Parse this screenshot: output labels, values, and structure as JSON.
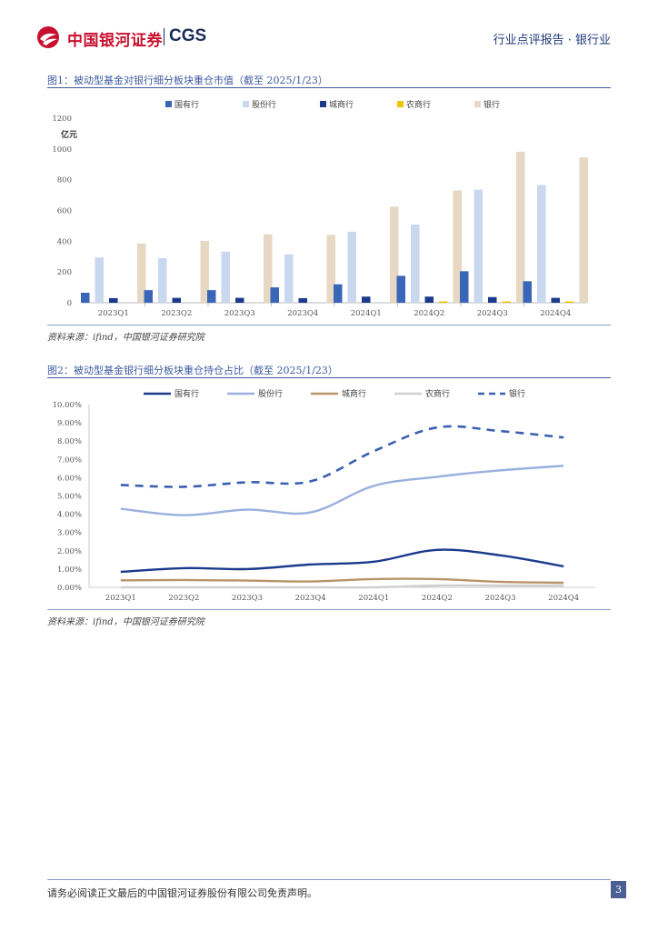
{
  "header": {
    "brand_cn": "中国银河证券",
    "brand_en": "CGS",
    "report_type": "行业点评报告 · 银行业"
  },
  "figure1": {
    "title": "图1：被动型基金对银行细分板块重仓市值（截至 2025/1/23）",
    "source": "资料来源：ifind，中国银河证券研究院"
  },
  "figure2": {
    "title": "图2：被动型基金银行细分板块重仓持仓占比（截至 2025/1/23）",
    "source": "资料来源：ifind，中国银河证券研究院"
  },
  "footer": {
    "disclaimer": "请务必阅读正文最后的中国银河证券股份有限公司免责声明。",
    "page_number": "3"
  },
  "colors": {
    "brand_red": "#c8102e",
    "brand_navy": "#1a2a5a",
    "title_blue": "#3d5aa0",
    "state_owned": "#3a66b8",
    "joint_stock": "#c9d7ef",
    "city_bank": "#1b3a8c",
    "rural_bank": "#f2c500",
    "bank": "#e6d8c3",
    "line_state_owned": "#1b3a8c",
    "line_joint_stock": "#9ab0de",
    "line_city_bank": "#b8946a",
    "line_rural_bank": "#d0d0d0",
    "line_bank": "#3a60b0"
  },
  "chart_data": [
    {
      "type": "bar",
      "title": "被动型基金对银行细分板块重仓市值（截至 2025/1/23）",
      "ylabel": "亿元",
      "xlabel": "",
      "ylim": [
        0,
        1200
      ],
      "yticks": [
        0,
        200,
        400,
        600,
        800,
        1000,
        1200
      ],
      "categories": [
        "2023Q1",
        "2023Q2",
        "2023Q3",
        "2023Q4",
        "2024Q1",
        "2024Q2",
        "2024Q3",
        "2024Q4"
      ],
      "legend_position": "top",
      "series": [
        {
          "name": "国有行",
          "color_key": "state_owned",
          "values": [
            65,
            82,
            82,
            100,
            120,
            175,
            205,
            140
          ]
        },
        {
          "name": "股份行",
          "color_key": "joint_stock",
          "values": [
            295,
            290,
            332,
            315,
            462,
            508,
            735,
            765
          ]
        },
        {
          "name": "城商行",
          "color_key": "city_bank",
          "values": [
            30,
            32,
            32,
            30,
            40,
            40,
            37,
            32
          ]
        },
        {
          "name": "农商行",
          "color_key": "rural_bank",
          "values": [
            0,
            0,
            0,
            0,
            0,
            9,
            9,
            9
          ]
        },
        {
          "name": "银行",
          "color_key": "bank",
          "values": [
            385,
            402,
            445,
            442,
            625,
            730,
            982,
            945
          ]
        }
      ]
    },
    {
      "type": "line",
      "title": "被动型基金银行细分板块重仓持仓占比（截至 2025/1/23）",
      "xlabel": "",
      "ylabel": "",
      "ylim": [
        0,
        10
      ],
      "yticks": [
        0,
        1,
        2,
        3,
        4,
        5,
        6,
        7,
        8,
        9,
        10
      ],
      "ytick_labels": [
        "0.00%",
        "1.00%",
        "2.00%",
        "3.00%",
        "4.00%",
        "5.00%",
        "6.00%",
        "7.00%",
        "8.00%",
        "9.00%",
        "10.00%"
      ],
      "categories": [
        "2023Q1",
        "2023Q2",
        "2023Q3",
        "2023Q4",
        "2024Q1",
        "2024Q2",
        "2024Q3",
        "2024Q4"
      ],
      "legend_position": "top",
      "series": [
        {
          "name": "国有行",
          "color_key": "line_state_owned",
          "dashed": false,
          "values": [
            0.85,
            1.05,
            1.0,
            1.25,
            1.4,
            2.05,
            1.75,
            1.15
          ]
        },
        {
          "name": "股份行",
          "color_key": "line_joint_stock",
          "dashed": false,
          "values": [
            4.3,
            3.95,
            4.25,
            4.1,
            5.55,
            6.05,
            6.4,
            6.65
          ]
        },
        {
          "name": "城商行",
          "color_key": "line_city_bank",
          "dashed": false,
          "values": [
            0.38,
            0.4,
            0.37,
            0.32,
            0.45,
            0.45,
            0.3,
            0.25
          ]
        },
        {
          "name": "农商行",
          "color_key": "line_rural_bank",
          "dashed": false,
          "values": [
            0.0,
            0.0,
            0.0,
            0.0,
            0.0,
            0.1,
            0.1,
            0.1
          ]
        },
        {
          "name": "银行",
          "color_key": "line_bank",
          "dashed": true,
          "values": [
            5.6,
            5.5,
            5.75,
            5.8,
            7.45,
            8.75,
            8.55,
            8.2
          ]
        }
      ]
    }
  ]
}
